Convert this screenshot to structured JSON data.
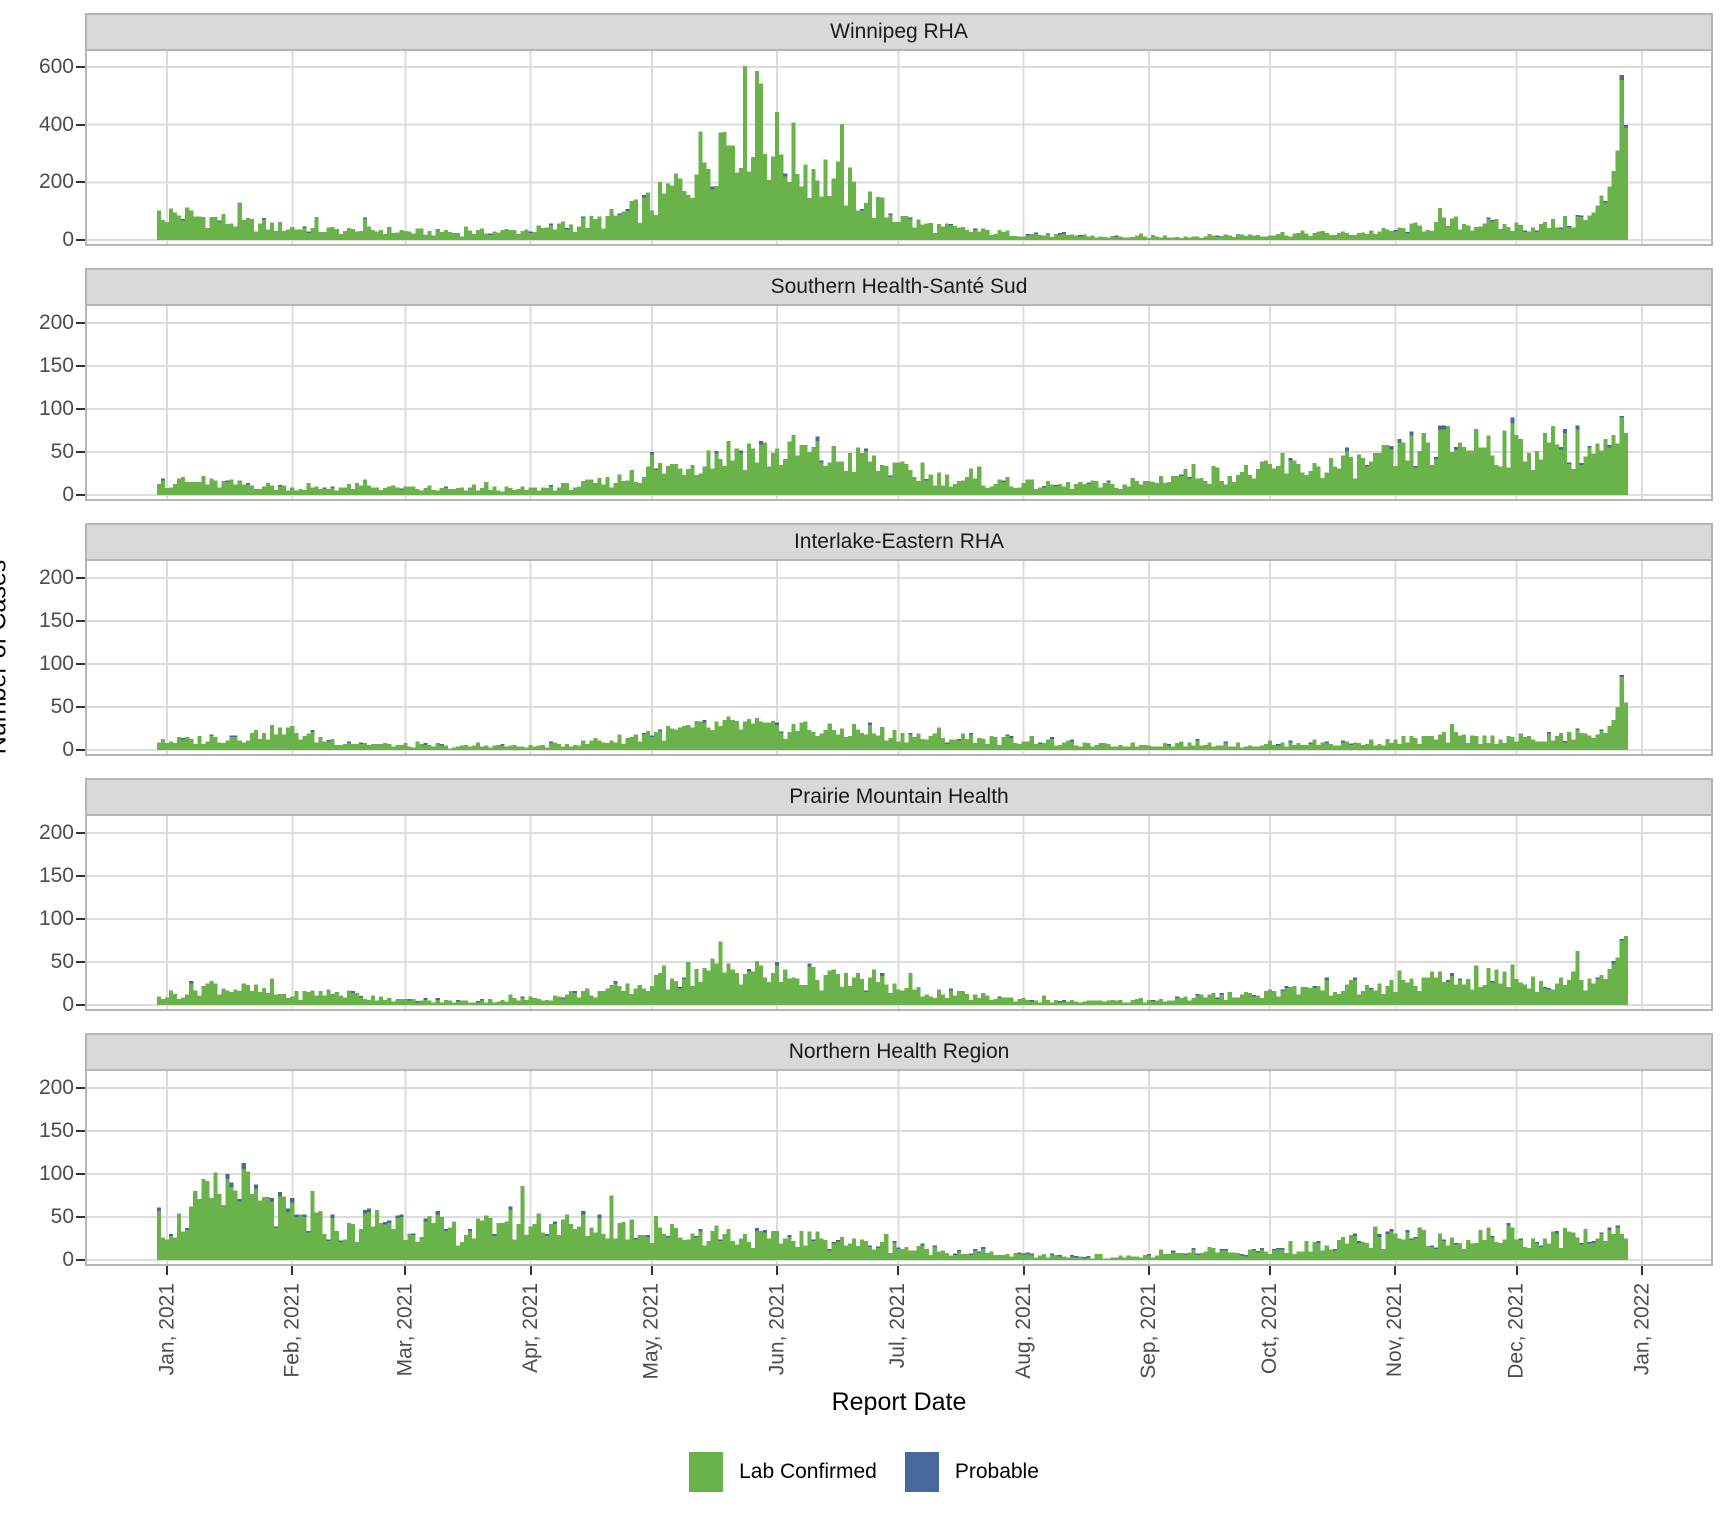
{
  "figure": {
    "x_axis_title": "Report Date",
    "y_axis_title": "Number of Cases",
    "x_tick_labels": [
      "Jan, 2021",
      "Feb, 2021",
      "Mar, 2021",
      "Apr, 2021",
      "May, 2021",
      "Jun, 2021",
      "Jul, 2021",
      "Aug, 2021",
      "Sep, 2021",
      "Oct, 2021",
      "Nov, 2021",
      "Dec, 2021",
      "Jan, 2022"
    ],
    "legend": {
      "items": [
        {
          "label": "Lab Confirmed",
          "color": "#6ab34b"
        },
        {
          "label": "Probable",
          "color": "#46689b"
        }
      ]
    },
    "colors": {
      "lab_confirmed": "#6ab34b",
      "probable": "#46689b",
      "strip_background": "#d9d9d9",
      "panel_border": "#b5b5b5",
      "gridline": "#dcdcdc",
      "tick_text": "#4d4d4d"
    }
  },
  "chart_data": {
    "type": "bar",
    "stacked": true,
    "xlabel": "Report Date",
    "ylabel": "Number of Cases",
    "x_unit": "day",
    "x_start_date": "2021-01-01",
    "x_end_date": "2021-12-28",
    "month_tick_day_offsets": [
      0,
      31,
      59,
      90,
      120,
      151,
      181,
      212,
      243,
      273,
      304,
      334,
      365
    ],
    "series_names": [
      "Lab Confirmed",
      "Probable"
    ],
    "note": "Daily stacked bars per region; values estimated from pixels. weekly_avg_daily_cases = estimated mean daily case count for each of 52 weeks starting 2021-01-01. final_daily_cases/final_daily_probable are explicit daily values for the last days ending 2021-12-28.",
    "panels": [
      {
        "title": "Winnipeg RHA",
        "yticks": [
          0,
          200,
          400,
          600
        ],
        "ylim": [
          0,
          669
        ],
        "weekly_avg_daily_cases": [
          85,
          72,
          58,
          48,
          40,
          34,
          30,
          33,
          28,
          25,
          24,
          27,
          30,
          36,
          48,
          65,
          90,
          130,
          210,
          330,
          400,
          310,
          250,
          205,
          150,
          90,
          55,
          40,
          30,
          24,
          19,
          15,
          12,
          10,
          10,
          12,
          12,
          15,
          18,
          20,
          22,
          20,
          25,
          30,
          45,
          55,
          50,
          45,
          42,
          55,
          80,
          150
        ],
        "final_daily_cases": [
          70,
          85,
          95,
          120,
          155,
          130,
          185,
          240,
          310,
          555,
          390
        ],
        "final_daily_probable": [
          0,
          0,
          0,
          0,
          0,
          6,
          0,
          0,
          0,
          18,
          8
        ],
        "probable_frequency": 0.1,
        "seed": 1
      },
      {
        "title": "Southern Health-Santé Sud",
        "yticks": [
          0,
          50,
          100,
          150,
          200
        ],
        "ylim": [
          0,
          224
        ],
        "weekly_avg_daily_cases": [
          14,
          13,
          12,
          10,
          8,
          7,
          9,
          9,
          7,
          6,
          6,
          7,
          6,
          8,
          10,
          14,
          20,
          28,
          35,
          45,
          50,
          45,
          48,
          40,
          38,
          30,
          22,
          18,
          15,
          13,
          12,
          10,
          12,
          10,
          12,
          20,
          25,
          22,
          25,
          28,
          30,
          32,
          35,
          40,
          50,
          55,
          60,
          55,
          50,
          55,
          50,
          60
        ],
        "final_daily_cases": [
          45,
          55,
          48,
          60,
          52,
          65,
          55,
          70,
          60,
          90,
          72
        ],
        "final_daily_probable": [
          0,
          2,
          0,
          0,
          0,
          0,
          3,
          0,
          0,
          2,
          0
        ],
        "probable_frequency": 0.12,
        "seed": 2
      },
      {
        "title": "Interlake-Eastern RHA",
        "yticks": [
          0,
          50,
          100,
          150,
          200
        ],
        "ylim": [
          0,
          224
        ],
        "weekly_avg_daily_cases": [
          10,
          12,
          15,
          18,
          20,
          12,
          8,
          6,
          5,
          4,
          4,
          5,
          4,
          5,
          7,
          10,
          14,
          18,
          22,
          25,
          28,
          22,
          25,
          20,
          22,
          18,
          15,
          12,
          14,
          10,
          12,
          8,
          6,
          5,
          6,
          6,
          7,
          6,
          5,
          6,
          8,
          7,
          8,
          10,
          12,
          14,
          12,
          13,
          12,
          14,
          18,
          30
        ],
        "final_daily_cases": [
          14,
          18,
          22,
          20,
          28,
          35,
          50,
          85,
          55
        ],
        "final_daily_probable": [
          0,
          0,
          2,
          0,
          0,
          0,
          0,
          2,
          0
        ],
        "probable_frequency": 0.12,
        "seed": 3
      },
      {
        "title": "Prairie Mountain Health",
        "yticks": [
          0,
          50,
          100,
          150,
          200
        ],
        "ylim": [
          0,
          224
        ],
        "weekly_avg_daily_cases": [
          12,
          22,
          18,
          15,
          10,
          14,
          12,
          8,
          5,
          4,
          4,
          5,
          6,
          8,
          12,
          15,
          18,
          25,
          35,
          38,
          40,
          32,
          30,
          28,
          25,
          22,
          15,
          12,
          10,
          8,
          6,
          4,
          4,
          4,
          5,
          6,
          8,
          10,
          12,
          15,
          18,
          20,
          18,
          20,
          25,
          28,
          30,
          28,
          25,
          30,
          28,
          40
        ],
        "final_daily_cases": [
          25,
          30,
          35,
          30,
          42,
          48,
          55,
          75,
          80
        ],
        "final_daily_probable": [
          0,
          2,
          0,
          0,
          0,
          3,
          0,
          2,
          0
        ],
        "probable_frequency": 0.12,
        "seed": 4
      },
      {
        "title": "Northern Health Region",
        "yticks": [
          0,
          50,
          100,
          150,
          200
        ],
        "ylim": [
          0,
          224
        ],
        "weekly_avg_daily_cases": [
          40,
          65,
          80,
          55,
          45,
          38,
          30,
          45,
          40,
          35,
          30,
          35,
          40,
          42,
          35,
          40,
          35,
          30,
          28,
          30,
          25,
          22,
          25,
          20,
          18,
          15,
          12,
          10,
          8,
          6,
          5,
          4,
          3,
          3,
          4,
          6,
          8,
          7,
          8,
          10,
          15,
          20,
          18,
          22,
          25,
          22,
          25,
          28,
          22,
          25,
          28,
          30
        ],
        "final_daily_cases": [
          20,
          25,
          30,
          22,
          35,
          30,
          38,
          30,
          25
        ],
        "final_daily_probable": [
          2,
          0,
          2,
          0,
          3,
          0,
          2,
          0,
          0
        ],
        "probable_frequency": 0.25,
        "seed": 5
      }
    ]
  }
}
